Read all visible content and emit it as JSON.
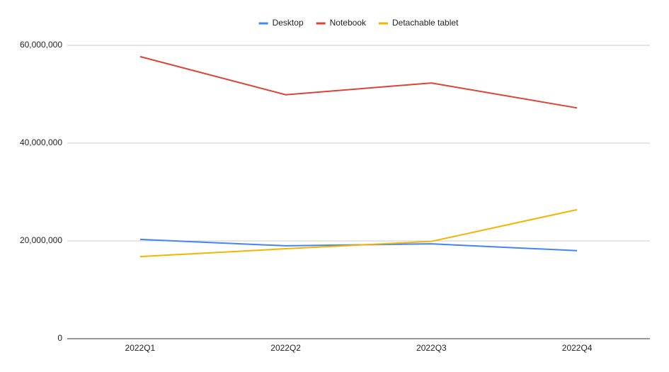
{
  "chart_data": {
    "type": "line",
    "categories": [
      "2022Q1",
      "2022Q2",
      "2022Q3",
      "2022Q4"
    ],
    "series": [
      {
        "name": "Desktop",
        "color": "#4285f4",
        "values": [
          20300000,
          19000000,
          19400000,
          18000000
        ]
      },
      {
        "name": "Notebook",
        "color": "#db4437",
        "values": [
          57700000,
          49900000,
          52300000,
          47200000
        ]
      },
      {
        "name": "Detachable tablet",
        "color": "#f4b400",
        "values": [
          16800000,
          18400000,
          19900000,
          26400000
        ]
      }
    ],
    "ylim": [
      0,
      60000000
    ],
    "yticks": [
      0,
      {
        "value": 20000000,
        "label": "20,000,000"
      },
      {
        "value": 40000000,
        "label": "40,000,000"
      },
      {
        "value": 60000000,
        "label": "60,000,000"
      }
    ],
    "grid": true,
    "legend": "top"
  }
}
